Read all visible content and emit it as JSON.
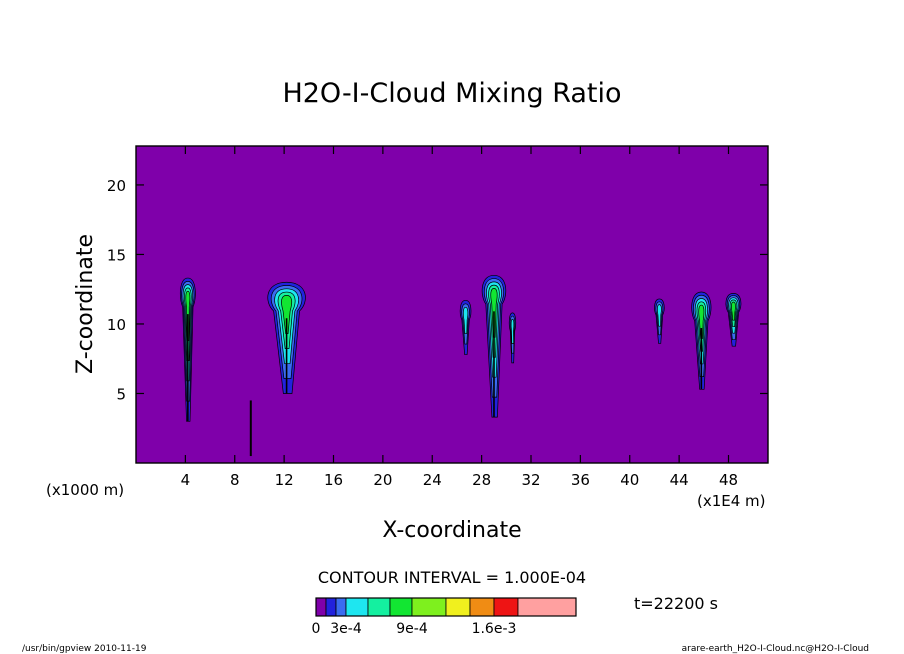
{
  "chart_data": {
    "type": "heatmap",
    "title": "H2O-I-Cloud Mixing Ratio",
    "xlabel": "X-coordinate",
    "ylabel": "Z-coordinate",
    "x_unit_left": "(x1000 m)",
    "x_unit_right": "(x1E4 m)",
    "xlim": [
      0,
      51.2
    ],
    "ylim": [
      0,
      22.8
    ],
    "x_ticks": [
      4,
      8,
      12,
      16,
      20,
      24,
      28,
      32,
      36,
      40,
      44,
      48
    ],
    "y_ticks": [
      5,
      10,
      15,
      20
    ],
    "background_color": "#7f00aa",
    "contour_interval": "CONTOUR INTERVAL = 1.000E-04",
    "time_label": "t=22200 s",
    "colorbar": {
      "colors": [
        "#7f00aa",
        "#2222dd",
        "#3a6cf0",
        "#1ee6f0",
        "#14f0a0",
        "#12e632",
        "#7ef01e",
        "#f0f01e",
        "#f08c14",
        "#ee1414",
        "#ffa0a0"
      ],
      "bounds": [
        0,
        0.0001,
        0.0002,
        0.0003,
        0.0005,
        0.0007,
        0.0009,
        0.0012,
        0.0014,
        0.0016,
        0.0018,
        0.003
      ],
      "tick_labels": [
        "0",
        "3e-4",
        "9e-4",
        "1.6e-3"
      ],
      "tick_values": [
        0,
        0.0003,
        0.0009,
        0.0016
      ]
    },
    "clouds": [
      {
        "x": 4.2,
        "z_top": 13.3,
        "z_bottom": 3.0,
        "width": 1.4,
        "peak": 0.0008
      },
      {
        "x": 9.3,
        "z_top": 4.5,
        "z_bottom": 0.5,
        "width": 0.2,
        "peak": 0
      },
      {
        "x": 12.2,
        "z_top": 13.0,
        "z_bottom": 5.0,
        "width": 3.5,
        "peak": 0.0008
      },
      {
        "x": 26.7,
        "z_top": 11.7,
        "z_bottom": 7.8,
        "width": 1.0,
        "peak": 0.0004
      },
      {
        "x": 29.0,
        "z_top": 13.5,
        "z_bottom": 3.3,
        "width": 2.2,
        "peak": 0.0008
      },
      {
        "x": 30.5,
        "z_top": 10.8,
        "z_bottom": 7.2,
        "width": 0.6,
        "peak": 0.0004
      },
      {
        "x": 42.4,
        "z_top": 11.8,
        "z_bottom": 8.6,
        "width": 0.9,
        "peak": 0.0004
      },
      {
        "x": 45.8,
        "z_top": 12.3,
        "z_bottom": 5.3,
        "width": 1.8,
        "peak": 0.0008
      },
      {
        "x": 48.4,
        "z_top": 12.2,
        "z_bottom": 8.4,
        "width": 1.4,
        "peak": 0.0008
      }
    ]
  },
  "footer": {
    "left": "/usr/bin/gpview   2010-11-19",
    "right": "arare-earth_H2O-I-Cloud.nc@H2O-I-Cloud"
  }
}
